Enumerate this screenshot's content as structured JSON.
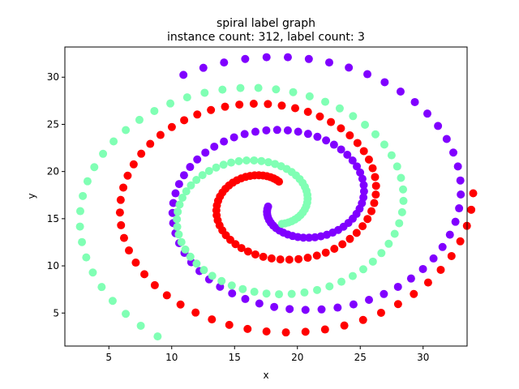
{
  "chart_data": {
    "type": "scatter",
    "title": "spiral label graph",
    "subtitle": "instance count: 312, label count: 3",
    "xlabel": "x",
    "ylabel": "y",
    "xlim": [
      1.5,
      33.5
    ],
    "ylim": [
      1.5,
      33.2
    ],
    "xticks": [
      5,
      10,
      15,
      20,
      25,
      30
    ],
    "yticks": [
      5,
      10,
      15,
      20,
      25,
      30
    ],
    "grid": false,
    "legend": "none",
    "marker_radius": 5,
    "spiral": {
      "center": [
        18.0,
        17.0
      ],
      "points_per_class": 104,
      "r_min": 2.0,
      "r_max": 16.0,
      "theta_span_turns": 1.8
    },
    "series": [
      {
        "color": "#8000ff",
        "center": [
          19.6,
          16.8
        ],
        "phase": 3.4,
        "r_scale": 1.0
      },
      {
        "color": "#ff0000",
        "center": [
          18.0,
          17.0
        ],
        "phase": 1.3,
        "r_scale": 1.0
      },
      {
        "color": "#80ffb4",
        "center": [
          17.5,
          16.0
        ],
        "phase": 5.4,
        "r_scale": 1.0
      }
    ]
  }
}
